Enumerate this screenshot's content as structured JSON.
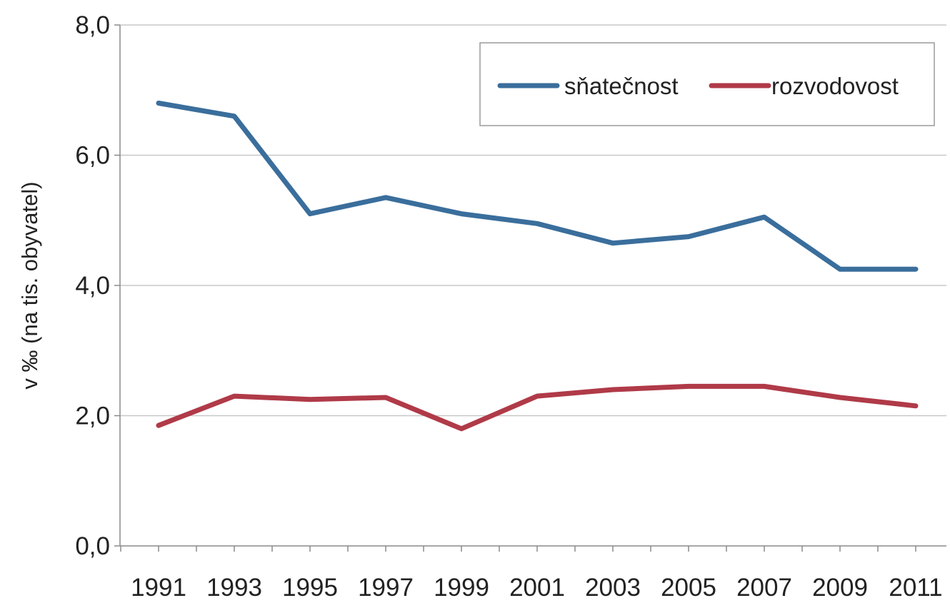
{
  "chart_data": {
    "type": "line",
    "ylabel": "v ‰ (na tis. obyvatel)",
    "xlabel": "",
    "ylim": [
      0,
      8
    ],
    "yticks": [
      "0,0",
      "2,0",
      "4,0",
      "6,0",
      "8,0"
    ],
    "ytick_values": [
      0,
      2,
      4,
      6,
      8
    ],
    "categories": [
      "1991",
      "1993",
      "1995",
      "1997",
      "1999",
      "2001",
      "2003",
      "2005",
      "2007",
      "2009",
      "2011"
    ],
    "grid": true,
    "legend_position": "top-right",
    "series": [
      {
        "name": "sňatečnost",
        "color": "#3a6e9c",
        "values": [
          6.8,
          6.6,
          5.1,
          5.35,
          5.1,
          4.95,
          4.65,
          4.75,
          5.05,
          4.25,
          4.25
        ]
      },
      {
        "name": "rozvodovost",
        "color": "#b03a48",
        "values": [
          1.85,
          2.3,
          2.25,
          2.28,
          1.8,
          2.3,
          2.4,
          2.45,
          2.45,
          2.28,
          2.15
        ]
      }
    ]
  }
}
